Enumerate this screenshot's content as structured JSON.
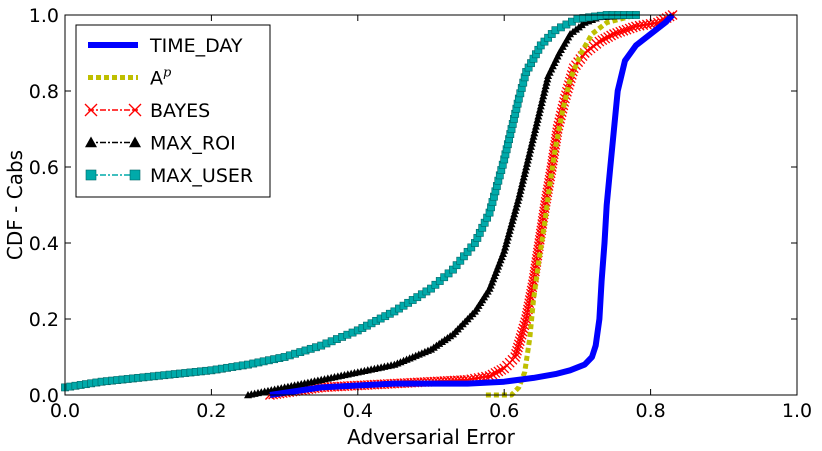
{
  "chart_data": {
    "type": "line",
    "title": "",
    "xlabel": "Adversarial Error",
    "ylabel": "CDF - Cabs",
    "xlim": [
      0.0,
      1.0
    ],
    "ylim": [
      0.0,
      1.0
    ],
    "xticks": [
      "0.0",
      "0.2",
      "0.4",
      "0.6",
      "0.8",
      "1.0"
    ],
    "yticks": [
      "0.0",
      "0.2",
      "0.4",
      "0.6",
      "0.8",
      "1.0"
    ],
    "grid": false,
    "legend_position": "top-left",
    "series": [
      {
        "name": "TIME_DAY",
        "color": "#0000ff",
        "marker": "none",
        "line": "solid",
        "points": [
          [
            0.28,
            0.0
          ],
          [
            0.35,
            0.02
          ],
          [
            0.45,
            0.03
          ],
          [
            0.55,
            0.03
          ],
          [
            0.6,
            0.035
          ],
          [
            0.64,
            0.045
          ],
          [
            0.67,
            0.055
          ],
          [
            0.69,
            0.065
          ],
          [
            0.71,
            0.08
          ],
          [
            0.72,
            0.1
          ],
          [
            0.725,
            0.13
          ],
          [
            0.73,
            0.2
          ],
          [
            0.733,
            0.3
          ],
          [
            0.737,
            0.4
          ],
          [
            0.74,
            0.5
          ],
          [
            0.745,
            0.6
          ],
          [
            0.75,
            0.7
          ],
          [
            0.755,
            0.8
          ],
          [
            0.765,
            0.88
          ],
          [
            0.78,
            0.92
          ],
          [
            0.8,
            0.95
          ],
          [
            0.82,
            0.98
          ],
          [
            0.83,
            1.0
          ]
        ]
      },
      {
        "name": "A^p",
        "legend_base": "A",
        "legend_sup": "p",
        "color": "#bfbf00",
        "marker": "none",
        "line": "dotted",
        "points": [
          [
            0.575,
            0.0
          ],
          [
            0.61,
            0.0
          ],
          [
            0.62,
            0.02
          ],
          [
            0.628,
            0.06
          ],
          [
            0.635,
            0.15
          ],
          [
            0.64,
            0.25
          ],
          [
            0.647,
            0.35
          ],
          [
            0.655,
            0.45
          ],
          [
            0.662,
            0.55
          ],
          [
            0.67,
            0.65
          ],
          [
            0.68,
            0.75
          ],
          [
            0.69,
            0.83
          ],
          [
            0.705,
            0.9
          ],
          [
            0.72,
            0.95
          ],
          [
            0.74,
            0.98
          ],
          [
            0.78,
            1.0
          ]
        ]
      },
      {
        "name": "BAYES",
        "color": "#ff0000",
        "marker": "x",
        "line": "dashdot",
        "points": [
          [
            0.28,
            0.0
          ],
          [
            0.35,
            0.02
          ],
          [
            0.4,
            0.025
          ],
          [
            0.45,
            0.03
          ],
          [
            0.5,
            0.035
          ],
          [
            0.55,
            0.04
          ],
          [
            0.58,
            0.05
          ],
          [
            0.6,
            0.07
          ],
          [
            0.615,
            0.1
          ],
          [
            0.63,
            0.2
          ],
          [
            0.64,
            0.3
          ],
          [
            0.648,
            0.4
          ],
          [
            0.656,
            0.5
          ],
          [
            0.665,
            0.6
          ],
          [
            0.673,
            0.7
          ],
          [
            0.683,
            0.78
          ],
          [
            0.695,
            0.86
          ],
          [
            0.71,
            0.9
          ],
          [
            0.73,
            0.93
          ],
          [
            0.75,
            0.95
          ],
          [
            0.78,
            0.97
          ],
          [
            0.81,
            0.98
          ],
          [
            0.83,
            1.0
          ]
        ]
      },
      {
        "name": "MAX_ROI",
        "color": "#000000",
        "marker": "triangle",
        "line": "dashdot",
        "points": [
          [
            0.25,
            0.0
          ],
          [
            0.3,
            0.02
          ],
          [
            0.35,
            0.04
          ],
          [
            0.4,
            0.06
          ],
          [
            0.45,
            0.08
          ],
          [
            0.5,
            0.12
          ],
          [
            0.53,
            0.16
          ],
          [
            0.56,
            0.22
          ],
          [
            0.58,
            0.28
          ],
          [
            0.6,
            0.38
          ],
          [
            0.61,
            0.45
          ],
          [
            0.62,
            0.52
          ],
          [
            0.63,
            0.6
          ],
          [
            0.64,
            0.68
          ],
          [
            0.65,
            0.76
          ],
          [
            0.66,
            0.84
          ],
          [
            0.675,
            0.9
          ],
          [
            0.69,
            0.95
          ],
          [
            0.71,
            0.98
          ],
          [
            0.73,
            0.995
          ],
          [
            0.78,
            1.0
          ]
        ]
      },
      {
        "name": "MAX_USER",
        "color": "#00aaaa",
        "marker": "square",
        "line": "dashdot",
        "points": [
          [
            0.0,
            0.02
          ],
          [
            0.05,
            0.035
          ],
          [
            0.1,
            0.045
          ],
          [
            0.15,
            0.055
          ],
          [
            0.2,
            0.065
          ],
          [
            0.25,
            0.08
          ],
          [
            0.3,
            0.1
          ],
          [
            0.35,
            0.13
          ],
          [
            0.4,
            0.17
          ],
          [
            0.45,
            0.22
          ],
          [
            0.5,
            0.28
          ],
          [
            0.53,
            0.33
          ],
          [
            0.56,
            0.4
          ],
          [
            0.58,
            0.48
          ],
          [
            0.59,
            0.55
          ],
          [
            0.6,
            0.62
          ],
          [
            0.61,
            0.7
          ],
          [
            0.62,
            0.78
          ],
          [
            0.63,
            0.85
          ],
          [
            0.65,
            0.92
          ],
          [
            0.67,
            0.96
          ],
          [
            0.7,
            0.99
          ],
          [
            0.74,
            1.0
          ],
          [
            0.78,
            1.0
          ]
        ]
      }
    ]
  }
}
